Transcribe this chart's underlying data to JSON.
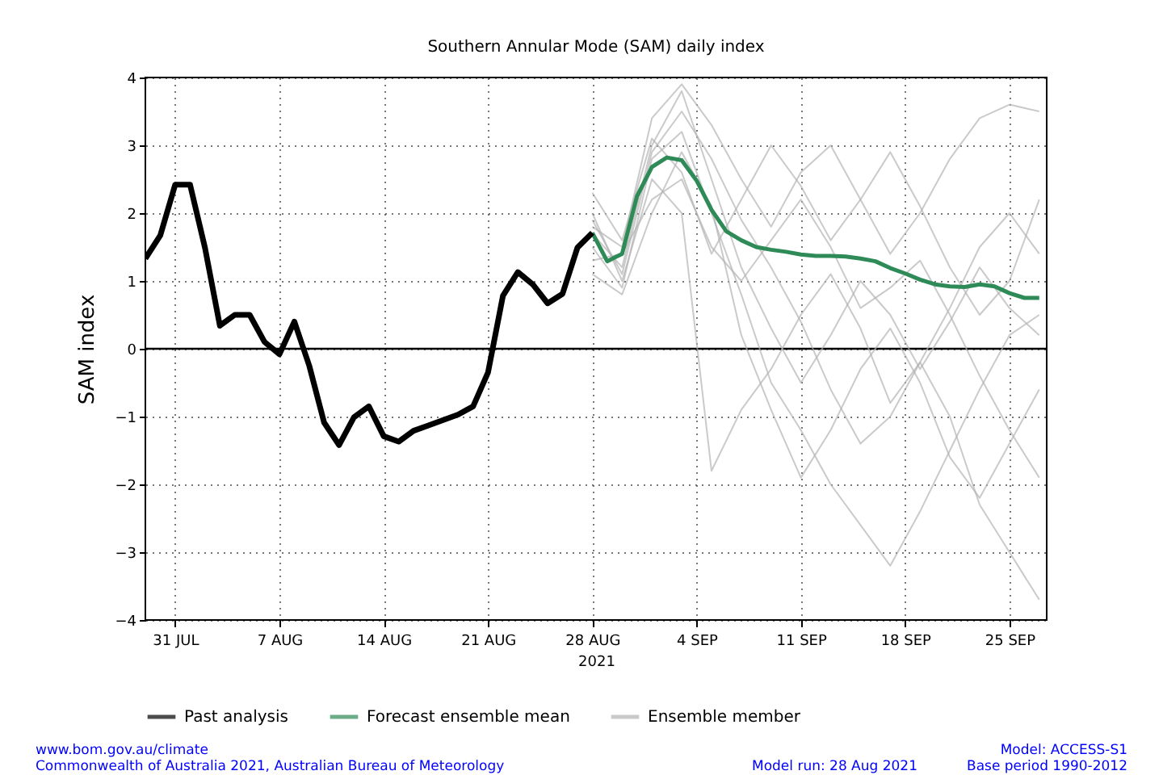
{
  "chart_data": {
    "type": "line",
    "title": "Southern Annular Mode (SAM) daily index",
    "ylabel": "SAM index",
    "xlabel": "2021",
    "xlim": [
      "2021-07-29",
      "2021-09-27T12:00"
    ],
    "xticks": [
      {
        "value": "2021-07-31",
        "label": "31 JUL"
      },
      {
        "value": "2021-08-07",
        "label": "7 AUG"
      },
      {
        "value": "2021-08-14",
        "label": "14 AUG"
      },
      {
        "value": "2021-08-21",
        "label": "21 AUG"
      },
      {
        "value": "2021-08-28",
        "label": "28 AUG"
      },
      {
        "value": "2021-09-04",
        "label": "4 SEP"
      },
      {
        "value": "2021-09-11",
        "label": "11 SEP"
      },
      {
        "value": "2021-09-18",
        "label": "18 SEP"
      },
      {
        "value": "2021-09-25",
        "label": "25 SEP"
      }
    ],
    "ylim": [
      -4,
      4
    ],
    "yticks": [
      {
        "value": -4,
        "label": "−4"
      },
      {
        "value": -3,
        "label": "−3"
      },
      {
        "value": -2,
        "label": "−2"
      },
      {
        "value": -1,
        "label": "−1"
      },
      0,
      1,
      2,
      3,
      4
    ],
    "grid": true,
    "legend": "bottom",
    "line_style": "solid",
    "marker": "none",
    "ref_lines": [
      {
        "axis": "y",
        "value": 0,
        "color": "#000000"
      }
    ],
    "annotations": [
      "www.bom.gov.au/climate",
      "Commonwealth of Australia 2021, Australian Bureau of Meteorology",
      "Model: ACCESS-S1",
      "Model run: 28 Aug 2021",
      "Base period 1990-2012"
    ],
    "series": [
      {
        "name": "Past analysis",
        "color": "#000000",
        "x": [
          "2021-07-29",
          "2021-07-30",
          "2021-07-31",
          "2021-08-01",
          "2021-08-02",
          "2021-08-03",
          "2021-08-04",
          "2021-08-05",
          "2021-08-06",
          "2021-08-07",
          "2021-08-08",
          "2021-08-09",
          "2021-08-10",
          "2021-08-11",
          "2021-08-12",
          "2021-08-13",
          "2021-08-14",
          "2021-08-15",
          "2021-08-16",
          "2021-08-17",
          "2021-08-18",
          "2021-08-19",
          "2021-08-20",
          "2021-08-21",
          "2021-08-22",
          "2021-08-23",
          "2021-08-24",
          "2021-08-25",
          "2021-08-26",
          "2021-08-27",
          "2021-08-28"
        ],
        "values": [
          1.33,
          1.67,
          2.42,
          2.42,
          1.49,
          0.34,
          0.5,
          0.5,
          0.1,
          -0.08,
          0.4,
          -0.25,
          -1.09,
          -1.42,
          -1.01,
          -0.85,
          -1.29,
          -1.37,
          -1.21,
          -1.13,
          -1.05,
          -0.97,
          -0.85,
          -0.35,
          0.78,
          1.13,
          0.95,
          0.67,
          0.81,
          1.49,
          1.71
        ]
      },
      {
        "name": "Forecast ensemble mean",
        "color": "#2e8b57",
        "x": [
          "2021-08-28",
          "2021-08-29",
          "2021-08-30",
          "2021-08-31",
          "2021-09-01",
          "2021-09-02",
          "2021-09-03",
          "2021-09-04",
          "2021-09-05",
          "2021-09-06",
          "2021-09-07",
          "2021-09-08",
          "2021-09-09",
          "2021-09-10",
          "2021-09-11",
          "2021-09-12",
          "2021-09-13",
          "2021-09-14",
          "2021-09-15",
          "2021-09-16",
          "2021-09-17",
          "2021-09-18",
          "2021-09-19",
          "2021-09-20",
          "2021-09-21",
          "2021-09-22",
          "2021-09-23",
          "2021-09-24",
          "2021-09-25",
          "2021-09-26",
          "2021-09-27"
        ],
        "values": [
          1.71,
          1.29,
          1.4,
          2.25,
          2.68,
          2.82,
          2.78,
          2.48,
          2.05,
          1.73,
          1.6,
          1.5,
          1.46,
          1.43,
          1.39,
          1.37,
          1.37,
          1.36,
          1.33,
          1.29,
          1.19,
          1.11,
          1.02,
          0.95,
          0.92,
          0.91,
          0.95,
          0.92,
          0.82,
          0.75,
          0.75
        ]
      },
      {
        "name": "Ensemble member",
        "color": "#b4b4b4",
        "x": [
          "2021-08-28",
          "2021-08-30",
          "2021-09-01",
          "2021-09-03",
          "2021-09-05",
          "2021-09-07",
          "2021-09-09",
          "2021-09-11",
          "2021-09-13",
          "2021-09-15",
          "2021-09-17",
          "2021-09-19",
          "2021-09-21",
          "2021-09-23",
          "2021-09-25",
          "2021-09-27"
        ],
        "values": [
          1.7,
          1.2,
          3.0,
          3.8,
          2.5,
          1.2,
          0.3,
          -0.5,
          0.2,
          1.0,
          0.5,
          -0.3,
          0.4,
          1.2,
          0.6,
          0.2
        ]
      },
      {
        "color": "#b4b4b4",
        "x": [
          "2021-08-28",
          "2021-08-30",
          "2021-09-01",
          "2021-09-03",
          "2021-09-05",
          "2021-09-07",
          "2021-09-09",
          "2021-09-11",
          "2021-09-13",
          "2021-09-15",
          "2021-09-17",
          "2021-09-19",
          "2021-09-21",
          "2021-09-23",
          "2021-09-25",
          "2021-09-27"
        ],
        "values": [
          2.0,
          1.0,
          2.5,
          2.0,
          -1.8,
          -0.9,
          -0.3,
          0.5,
          1.1,
          0.3,
          -0.8,
          -0.2,
          0.6,
          1.5,
          2.0,
          1.4
        ]
      },
      {
        "color": "#b4b4b4",
        "x": [
          "2021-08-28",
          "2021-08-30",
          "2021-09-01",
          "2021-09-03",
          "2021-09-05",
          "2021-09-07",
          "2021-09-09",
          "2021-09-11",
          "2021-09-13",
          "2021-09-15",
          "2021-09-17",
          "2021-09-19",
          "2021-09-21",
          "2021-09-23",
          "2021-09-25",
          "2021-09-27"
        ],
        "values": [
          1.5,
          0.9,
          2.8,
          3.2,
          2.0,
          0.8,
          -0.5,
          -1.2,
          -2.0,
          -2.6,
          -3.2,
          -2.4,
          -1.5,
          -0.6,
          0.2,
          0.5
        ]
      },
      {
        "color": "#b4b4b4",
        "x": [
          "2021-08-28",
          "2021-08-30",
          "2021-09-01",
          "2021-09-03",
          "2021-09-05",
          "2021-09-07",
          "2021-09-09",
          "2021-09-11",
          "2021-09-13",
          "2021-09-15",
          "2021-09-17",
          "2021-09-19",
          "2021-09-21",
          "2021-09-23",
          "2021-09-25",
          "2021-09-27"
        ],
        "values": [
          1.8,
          1.5,
          3.4,
          3.9,
          3.3,
          2.5,
          1.8,
          2.6,
          3.0,
          2.2,
          1.4,
          2.0,
          2.8,
          3.4,
          3.6,
          3.5
        ]
      },
      {
        "color": "#b4b4b4",
        "x": [
          "2021-08-28",
          "2021-08-30",
          "2021-09-01",
          "2021-09-03",
          "2021-09-05",
          "2021-09-07",
          "2021-09-09",
          "2021-09-11",
          "2021-09-13",
          "2021-09-15",
          "2021-09-17",
          "2021-09-19",
          "2021-09-21",
          "2021-09-23",
          "2021-09-25",
          "2021-09-27"
        ],
        "values": [
          1.3,
          1.4,
          2.2,
          2.5,
          1.5,
          1.0,
          1.6,
          2.2,
          1.5,
          0.6,
          0.9,
          1.3,
          0.5,
          -0.4,
          -1.2,
          -1.9
        ]
      },
      {
        "color": "#b4b4b4",
        "x": [
          "2021-08-28",
          "2021-08-30",
          "2021-09-01",
          "2021-09-03",
          "2021-09-05",
          "2021-09-07",
          "2021-09-09",
          "2021-09-11",
          "2021-09-13",
          "2021-09-15",
          "2021-09-17",
          "2021-09-19",
          "2021-09-21",
          "2021-09-23",
          "2021-09-25",
          "2021-09-27"
        ],
        "values": [
          1.9,
          1.1,
          2.9,
          3.5,
          2.8,
          1.9,
          1.2,
          0.4,
          -0.6,
          -1.4,
          -1.0,
          -0.2,
          -1.0,
          -2.3,
          -3.0,
          -3.7
        ]
      },
      {
        "color": "#b4b4b4",
        "x": [
          "2021-08-28",
          "2021-08-30",
          "2021-09-01",
          "2021-09-03",
          "2021-09-05",
          "2021-09-07",
          "2021-09-09",
          "2021-09-11",
          "2021-09-13",
          "2021-09-15",
          "2021-09-17",
          "2021-09-19",
          "2021-09-21",
          "2021-09-23",
          "2021-09-25",
          "2021-09-27"
        ],
        "values": [
          2.3,
          1.6,
          3.1,
          2.6,
          1.4,
          2.2,
          3.0,
          2.4,
          1.6,
          2.2,
          2.9,
          2.1,
          1.2,
          0.5,
          1.0,
          2.2
        ]
      },
      {
        "color": "#b4b4b4",
        "x": [
          "2021-08-28",
          "2021-08-30",
          "2021-09-01",
          "2021-09-03",
          "2021-09-05",
          "2021-09-07",
          "2021-09-09",
          "2021-09-11",
          "2021-09-13",
          "2021-09-15",
          "2021-09-17",
          "2021-09-19",
          "2021-09-21",
          "2021-09-23",
          "2021-09-25",
          "2021-09-27"
        ],
        "values": [
          1.1,
          0.8,
          2.0,
          2.9,
          2.1,
          0.2,
          -0.9,
          -1.9,
          -1.2,
          -0.3,
          0.3,
          -0.5,
          -1.6,
          -2.2,
          -1.4,
          -0.6
        ]
      }
    ]
  }
}
